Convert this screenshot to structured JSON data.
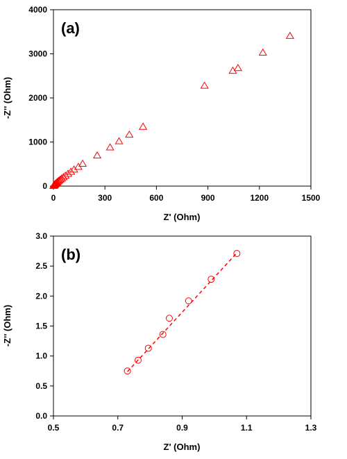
{
  "chart_data": [
    {
      "type": "scatter",
      "panel_label": "(a)",
      "xlabel": "Z' (Ohm)",
      "ylabel": "-Z'' (Ohm)",
      "xlim": [
        0,
        1500
      ],
      "ylim": [
        0,
        4000
      ],
      "xticks": [
        0,
        300,
        600,
        900,
        1200,
        1500
      ],
      "yticks": [
        0,
        1000,
        2000,
        3000,
        4000
      ],
      "marker": "triangle",
      "color": "#ff0000",
      "grid": false,
      "series": [
        {
          "x": [
            0.7,
            1,
            1.5,
            2,
            3,
            4,
            5,
            6,
            8,
            10,
            12,
            15,
            18,
            22,
            27,
            33,
            40,
            48,
            58,
            70,
            85,
            102,
            120,
            145,
            170,
            255,
            330,
            382,
            442,
            522,
            880,
            1045,
            1075,
            1220,
            1378
          ],
          "y": [
            0.75,
            1.5,
            3,
            5,
            8,
            12,
            16,
            20,
            28,
            35,
            45,
            55,
            68,
            82,
            100,
            118,
            140,
            165,
            195,
            230,
            272,
            318,
            368,
            430,
            500,
            688,
            870,
            1010,
            1160,
            1340,
            2270,
            2610,
            2670,
            3020,
            3400
          ]
        }
      ]
    },
    {
      "type": "scatter",
      "panel_label": "(b)",
      "xlabel": "Z' (Ohm)",
      "ylabel": "-Z'' (Ohm)",
      "xlim": [
        0.5,
        1.3
      ],
      "ylim": [
        0,
        3.0
      ],
      "xticks": [
        "0.5",
        "0.7",
        "0.9",
        "1.1",
        "1.3"
      ],
      "yticks": [
        "0.0",
        "0.5",
        "1.0",
        "1.5",
        "2.0",
        "2.5",
        "3.0"
      ],
      "marker": "circle",
      "color": "#ff0000",
      "grid": false,
      "series": [
        {
          "x": [
            0.73,
            0.763,
            0.795,
            0.84,
            0.86,
            0.92,
            0.99,
            1.07
          ],
          "y": [
            0.75,
            0.93,
            1.13,
            1.36,
            1.63,
            1.92,
            2.28,
            2.71
          ]
        }
      ],
      "trendline": {
        "style": "dashed",
        "x": [
          0.73,
          1.07
        ],
        "y": [
          0.74,
          2.72
        ]
      }
    }
  ]
}
